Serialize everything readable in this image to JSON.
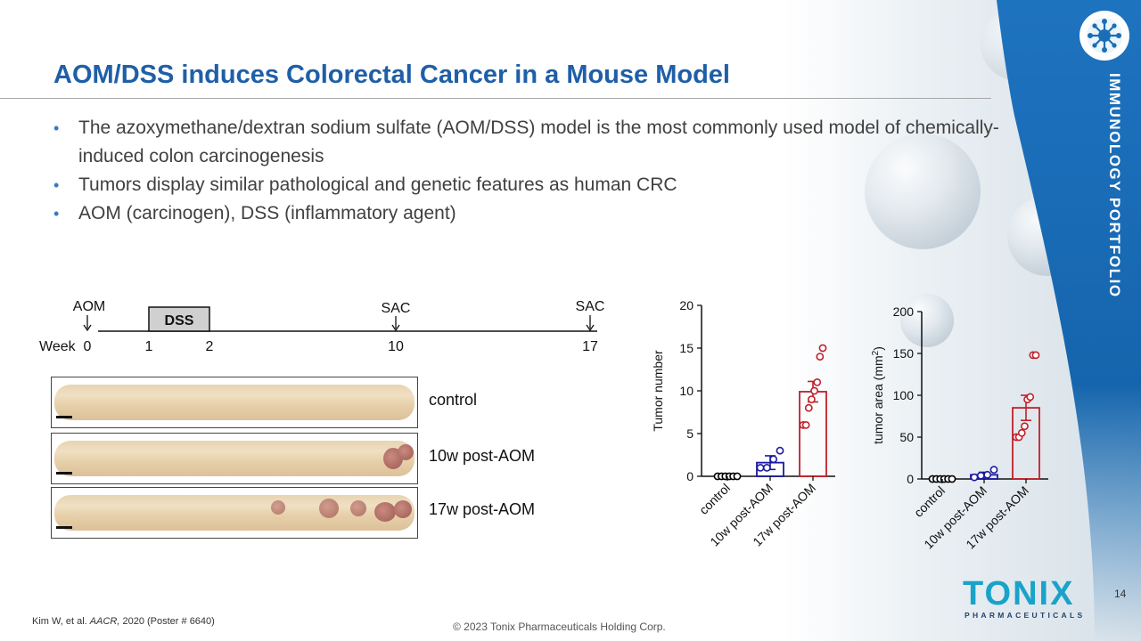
{
  "slide": {
    "title": "AOM/DSS induces Colorectal Cancer in a Mouse Model",
    "bullets": [
      "The azoxymethane/dextran sodium sulfate (AOM/DSS) model is the most commonly used model of chemically-induced colon carcinogenesis",
      "Tumors display similar pathological and genetic features as human CRC",
      "AOM (carcinogen), DSS (inflammatory agent)"
    ],
    "bullet_glyph": "•",
    "side_label": "IMMUNOLOGY PORTFOLIO",
    "reference_prefix": "Kim W, et al. ",
    "reference_journal": "AACR,",
    "reference_suffix": " 2020 (Poster # 6640)",
    "copyright": "© 2023 Tonix Pharmaceuticals Holding Corp.",
    "page_number": "14",
    "brand_name": "TONIX",
    "brand_tagline": "PHARMACEUTICALS",
    "colors": {
      "title": "#1f5fa8",
      "accent": "#1aa3c9",
      "band": "#1b6db5",
      "control": "#000000",
      "post10w": "#1a1aa0",
      "post17w": "#c0202a"
    }
  },
  "timeline": {
    "week_label": "Week",
    "ticks": [
      {
        "week": "0",
        "above": "AOM"
      },
      {
        "week": "1",
        "above": ""
      },
      {
        "week": "2",
        "above": ""
      },
      {
        "week": "10",
        "above": "SAC"
      },
      {
        "week": "17",
        "above": "SAC"
      }
    ],
    "dss_label": "DSS"
  },
  "colon_images": [
    {
      "label": "control"
    },
    {
      "label": "10w post-AOM"
    },
    {
      "label": "17w post-AOM"
    }
  ],
  "chart_data": [
    {
      "type": "bar",
      "title": "",
      "ylabel": "Tumor number",
      "ylim": [
        0,
        20
      ],
      "yticks": [
        "0",
        "5",
        "10",
        "15",
        "20"
      ],
      "categories": [
        "control",
        "10w post-AOM",
        "17w post-AOM"
      ],
      "values": [
        0,
        1.6,
        9.9
      ],
      "errors": [
        0,
        0.8,
        1.2
      ],
      "points": [
        [
          0,
          0,
          0,
          0,
          0,
          0
        ],
        [
          1,
          1,
          2,
          3
        ],
        [
          6,
          6,
          8,
          9,
          10,
          11,
          14,
          15
        ]
      ]
    },
    {
      "type": "bar",
      "title": "",
      "ylabel": "tumor area (mm",
      "ylabel_sup": "2",
      "ylabel_close": ")",
      "ylim": [
        0,
        200
      ],
      "yticks": [
        "0",
        "50",
        "100",
        "150",
        "200"
      ],
      "categories": [
        "control",
        "10w post-AOM",
        "17w post-AOM"
      ],
      "values": [
        0,
        5,
        85
      ],
      "errors": [
        0,
        3,
        15
      ],
      "points": [
        [
          0,
          0,
          0,
          0,
          0,
          0
        ],
        [
          2,
          4,
          5,
          11
        ],
        [
          50,
          50,
          55,
          63,
          95,
          98,
          148,
          148
        ]
      ]
    }
  ]
}
